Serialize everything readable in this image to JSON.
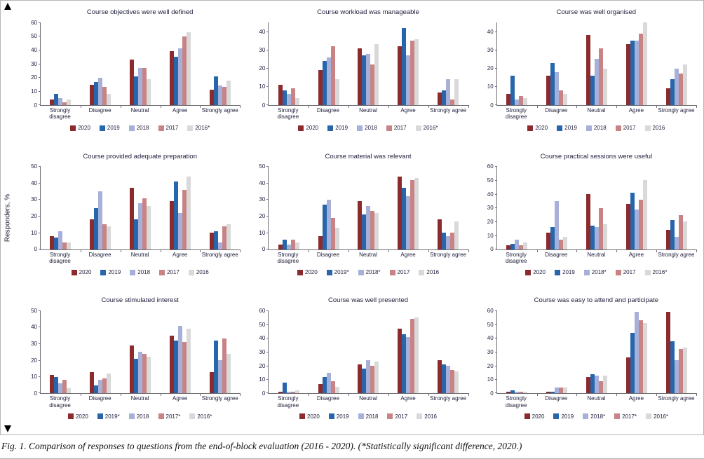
{
  "figure": {
    "y_axis_label": "Responders, %",
    "caption": "Fig. 1. Comparison of responses to questions from the end-of-block evaluation (2016 - 2020). (*Statistically significant difference, 2020.)"
  },
  "colors": {
    "2020": "#8c2b2e",
    "2019": "#2766ab",
    "2018": "#a6b0d8",
    "2017": "#c98384",
    "2016": "#d9d9d9"
  },
  "chart_data": [
    {
      "type": "bar",
      "title": "Course objectives were well defined",
      "categories": [
        "Strongly disagree",
        "Disagree",
        "Neutral",
        "Agree",
        "Strongly agree"
      ],
      "ylabel": "Responders, %",
      "yticks": [
        0,
        10,
        20,
        30,
        40,
        50,
        60
      ],
      "ymax": 60,
      "grid": false,
      "legend_position": "bottom",
      "series": [
        {
          "name": "2020",
          "values": [
            4,
            15,
            33,
            39,
            11
          ]
        },
        {
          "name": "2019",
          "values": [
            8,
            17,
            21,
            35,
            21
          ]
        },
        {
          "name": "2018",
          "values": [
            5,
            20,
            27,
            41,
            14
          ]
        },
        {
          "name": "2017",
          "values": [
            2,
            13,
            27,
            50,
            13
          ]
        },
        {
          "name": "2016*",
          "values": [
            4,
            8,
            19,
            53,
            18
          ]
        }
      ]
    },
    {
      "type": "bar",
      "title": "Course workload was manageable",
      "categories": [
        "Strongly disagree",
        "Disagree",
        "Neutral",
        "Agree",
        "Strongly agree"
      ],
      "ylabel": "Responders, %",
      "yticks": [
        0,
        10,
        20,
        30,
        40
      ],
      "ymax": 45,
      "grid": false,
      "legend_position": "bottom",
      "series": [
        {
          "name": "2020",
          "values": [
            11,
            19,
            31,
            32,
            7
          ]
        },
        {
          "name": "2019",
          "values": [
            8,
            24,
            27,
            42,
            8
          ]
        },
        {
          "name": "2018",
          "values": [
            6,
            26,
            28,
            27,
            14
          ]
        },
        {
          "name": "2017",
          "values": [
            9,
            32,
            22,
            35,
            3
          ]
        },
        {
          "name": "2016*",
          "values": [
            4,
            14,
            33,
            36,
            14
          ]
        }
      ]
    },
    {
      "type": "bar",
      "title": "Course was well organised",
      "categories": [
        "Strongly disagree",
        "Disagree",
        "Neutral",
        "Agree",
        "Strongly agree"
      ],
      "ylabel": "Responders, %",
      "yticks": [
        0,
        10,
        20,
        30,
        40
      ],
      "ymax": 45,
      "grid": false,
      "legend_position": "bottom",
      "series": [
        {
          "name": "2020",
          "values": [
            6,
            16,
            38,
            33,
            9
          ]
        },
        {
          "name": "2019",
          "values": [
            16,
            23,
            16,
            35,
            14
          ]
        },
        {
          "name": "2018",
          "values": [
            3,
            18,
            25,
            35,
            20
          ]
        },
        {
          "name": "2017",
          "values": [
            5,
            8,
            31,
            39,
            17
          ]
        },
        {
          "name": "2016",
          "values": [
            4,
            6,
            20,
            45,
            22
          ]
        }
      ]
    },
    {
      "type": "bar",
      "title": "Course provided adequate preparation",
      "categories": [
        "Strongly disagree",
        "Disagree",
        "Neutral",
        "Agree",
        "Strongly agree"
      ],
      "ylabel": "Responders, %",
      "yticks": [
        0,
        10,
        20,
        30,
        40,
        50
      ],
      "ymax": 50,
      "grid": false,
      "legend_position": "bottom",
      "series": [
        {
          "name": "2020",
          "values": [
            8,
            18,
            37,
            29,
            10
          ]
        },
        {
          "name": "2019",
          "values": [
            7,
            25,
            18,
            41,
            11
          ]
        },
        {
          "name": "2018",
          "values": [
            11,
            35,
            28,
            22,
            4
          ]
        },
        {
          "name": "2017",
          "values": [
            4,
            15,
            31,
            36,
            14
          ]
        },
        {
          "name": "2016",
          "values": [
            4,
            14,
            26,
            44,
            15
          ]
        }
      ]
    },
    {
      "type": "bar",
      "title": "Course material was relevant",
      "categories": [
        "Strongly disagree",
        "Disagree",
        "Neutral",
        "Agree",
        "Strongly agree"
      ],
      "ylabel": "Responders, %",
      "yticks": [
        0,
        10,
        20,
        30,
        40,
        50
      ],
      "ymax": 50,
      "grid": false,
      "legend_position": "bottom",
      "series": [
        {
          "name": "2020",
          "values": [
            3,
            8,
            29,
            44,
            18
          ]
        },
        {
          "name": "2019*",
          "values": [
            6,
            27,
            21,
            37,
            10
          ]
        },
        {
          "name": "2018*",
          "values": [
            3,
            30,
            26,
            32,
            8
          ]
        },
        {
          "name": "2017",
          "values": [
            6,
            19,
            23,
            42,
            10
          ]
        },
        {
          "name": "2016",
          "values": [
            4,
            13,
            22,
            43,
            17
          ]
        }
      ]
    },
    {
      "type": "bar",
      "title": "Course practical sessions were useful",
      "categories": [
        "Strongly disagree",
        "Disagree",
        "Neutral",
        "Agree",
        "Strongly agree"
      ],
      "ylabel": "Responders, %",
      "yticks": [
        0,
        10,
        20,
        30,
        40,
        50,
        60
      ],
      "ymax": 60,
      "grid": false,
      "legend_position": "bottom",
      "series": [
        {
          "name": "2020",
          "values": [
            3,
            12,
            40,
            33,
            14
          ]
        },
        {
          "name": "2019",
          "values": [
            4,
            16,
            17,
            41,
            21
          ]
        },
        {
          "name": "2018*",
          "values": [
            7,
            35,
            16,
            29,
            9
          ]
        },
        {
          "name": "2017",
          "values": [
            3,
            7,
            30,
            36,
            25
          ]
        },
        {
          "name": "2016*",
          "values": [
            5,
            9,
            18,
            50,
            20
          ]
        }
      ]
    },
    {
      "type": "bar",
      "title": "Course stimulated interest",
      "categories": [
        "Strongly disagree",
        "Disagree",
        "Neutral",
        "Agree",
        "Strongly agree"
      ],
      "ylabel": "Responders, %",
      "yticks": [
        0,
        10,
        20,
        30,
        40,
        50
      ],
      "ymax": 50,
      "grid": false,
      "legend_position": "bottom",
      "series": [
        {
          "name": "2020",
          "values": [
            11,
            13,
            29,
            35,
            13
          ]
        },
        {
          "name": "2019*",
          "values": [
            10,
            5,
            21,
            32,
            32
          ]
        },
        {
          "name": "2018",
          "values": [
            6,
            8,
            25,
            41,
            20
          ]
        },
        {
          "name": "2017*",
          "values": [
            8,
            9,
            24,
            31,
            33
          ]
        },
        {
          "name": "2016*",
          "values": [
            3,
            12,
            22,
            39,
            24
          ]
        }
      ]
    },
    {
      "type": "bar",
      "title": "Course was well presented",
      "categories": [
        "Strongly disagree",
        "Disagree",
        "Neutral",
        "Agree",
        "Strongly agree"
      ],
      "ylabel": "Responders, %",
      "yticks": [
        0,
        10,
        20,
        30,
        40,
        50,
        60
      ],
      "ymax": 60,
      "grid": false,
      "legend_position": "bottom",
      "series": [
        {
          "name": "2020",
          "values": [
            1,
            7,
            21,
            47,
            24
          ]
        },
        {
          "name": "2019",
          "values": [
            8,
            12,
            18,
            43,
            21
          ]
        },
        {
          "name": "2018",
          "values": [
            1,
            15,
            24,
            41,
            20
          ]
        },
        {
          "name": "2017",
          "values": [
            1,
            9,
            20,
            54,
            17
          ]
        },
        {
          "name": "2016",
          "values": [
            2,
            5,
            23,
            55,
            16
          ]
        }
      ]
    },
    {
      "type": "bar",
      "title": "Course was easy to attend and participate",
      "categories": [
        "Strongly disagree",
        "Disagree",
        "Neutral",
        "Agree",
        "Strongly agree"
      ],
      "ylabel": "Responders, %",
      "yticks": [
        0,
        10,
        20,
        30,
        40,
        50,
        60
      ],
      "ymax": 60,
      "grid": false,
      "legend_position": "bottom",
      "series": [
        {
          "name": "2020",
          "values": [
            1,
            1,
            12,
            26,
            59
          ]
        },
        {
          "name": "2019",
          "values": [
            2,
            1,
            14,
            44,
            38
          ]
        },
        {
          "name": "2018*",
          "values": [
            1,
            4,
            13,
            59,
            24
          ]
        },
        {
          "name": "2017*",
          "values": [
            1,
            4,
            9,
            53,
            32
          ]
        },
        {
          "name": "2016*",
          "values": [
            1,
            4,
            13,
            51,
            33
          ]
        }
      ]
    }
  ]
}
